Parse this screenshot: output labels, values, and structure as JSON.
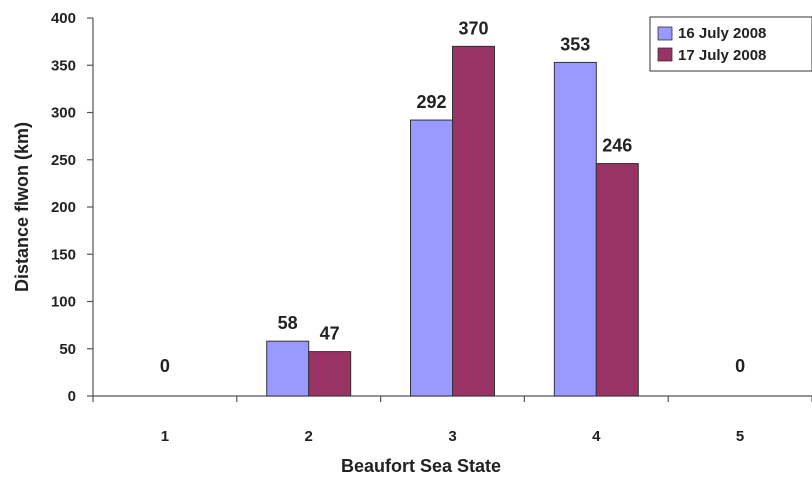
{
  "chart_data": {
    "type": "bar",
    "title": "",
    "xlabel": "Beaufort Sea State",
    "ylabel": "Distance flwon (km)",
    "categories": [
      "1",
      "2",
      "3",
      "4",
      "5"
    ],
    "ylim": [
      0,
      400
    ],
    "yticks": [
      0,
      50,
      100,
      150,
      200,
      250,
      300,
      350,
      400
    ],
    "series": [
      {
        "name": "16 July 2008",
        "color": "#9999ff",
        "values": [
          0,
          58,
          292,
          353,
          0
        ]
      },
      {
        "name": "17 July 2008",
        "color": "#993366",
        "values": [
          0,
          47,
          370,
          246,
          0
        ]
      }
    ],
    "data_labels": [
      "0",
      "58",
      "47",
      "292",
      "370",
      "353",
      "246",
      "0"
    ],
    "legend": {
      "position": "top-right"
    },
    "grid": false
  }
}
